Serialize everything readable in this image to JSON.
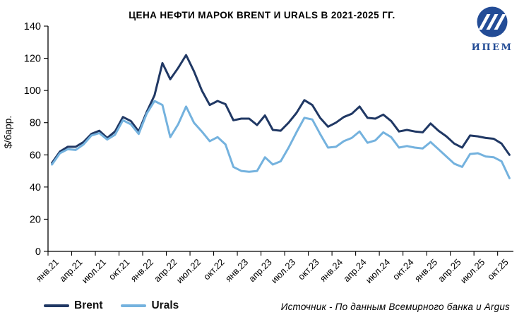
{
  "title": "ЦЕНА НЕФТИ МАРОК BRENT И URALS В 2021-2025 ГГ.",
  "logo": {
    "text": "ИПЕМ",
    "color": "#234C96"
  },
  "source_note": "Источник - По данным Всемирного банка и Argus",
  "chart_data": {
    "type": "line",
    "title": "ЦЕНА НЕФТИ МАРОК BRENT И URALS В 2021-2025 ГГ.",
    "xlabel": "",
    "ylabel": "$/барр.",
    "ylim": [
      0,
      140
    ],
    "yticks": [
      0,
      20,
      40,
      60,
      80,
      100,
      120,
      140
    ],
    "grid": false,
    "legend_position": "bottom-left",
    "x_unit": "month",
    "months_per_tick": 3,
    "x_tick_labels": [
      "янв.21",
      "апр.21",
      "июл.21",
      "окт.21",
      "янв.22",
      "апр.22",
      "июл.22",
      "окт.22",
      "янв.23",
      "апр.23",
      "июл.23",
      "окт.23",
      "янв.24",
      "апр.24",
      "июл.24",
      "окт.24",
      "янв.25",
      "апр.25",
      "июл.25",
      "окт.25"
    ],
    "series": [
      {
        "name": "Brent",
        "color": "#203864",
        "values": [
          55,
          62,
          65,
          65,
          68,
          73,
          75,
          70.5,
          74.5,
          83.5,
          81,
          74.5,
          86.5,
          97,
          117,
          107,
          114,
          122,
          112,
          100,
          91,
          93.5,
          91.5,
          81.5,
          82.5,
          82.5,
          78.5,
          84.5,
          75.5,
          75,
          80,
          86,
          94,
          91,
          83,
          77.5,
          80,
          83.5,
          85.5,
          90,
          83,
          82.5,
          85,
          81,
          74.5,
          75.5,
          74.5,
          74,
          79.5,
          75,
          71.5,
          67,
          64.5,
          72,
          71.5,
          70.5,
          70,
          67,
          60
        ]
      },
      {
        "name": "Urals",
        "color": "#74B2DE",
        "values": [
          54,
          61,
          63.5,
          63,
          66.5,
          72,
          73.5,
          69.5,
          72.5,
          81.5,
          79,
          73,
          85.5,
          93.5,
          91,
          71,
          79,
          90,
          80,
          74.5,
          68.5,
          71,
          66.5,
          52.5,
          50,
          49.5,
          50,
          58.5,
          54,
          56,
          64.5,
          74,
          83,
          82,
          73,
          64.5,
          65,
          68.5,
          70.5,
          74.5,
          67.5,
          69,
          74,
          71,
          64.5,
          65.5,
          64.5,
          64,
          68,
          63.5,
          59,
          54.5,
          52.5,
          60.5,
          61,
          59,
          58.5,
          56,
          45.5
        ]
      }
    ]
  }
}
